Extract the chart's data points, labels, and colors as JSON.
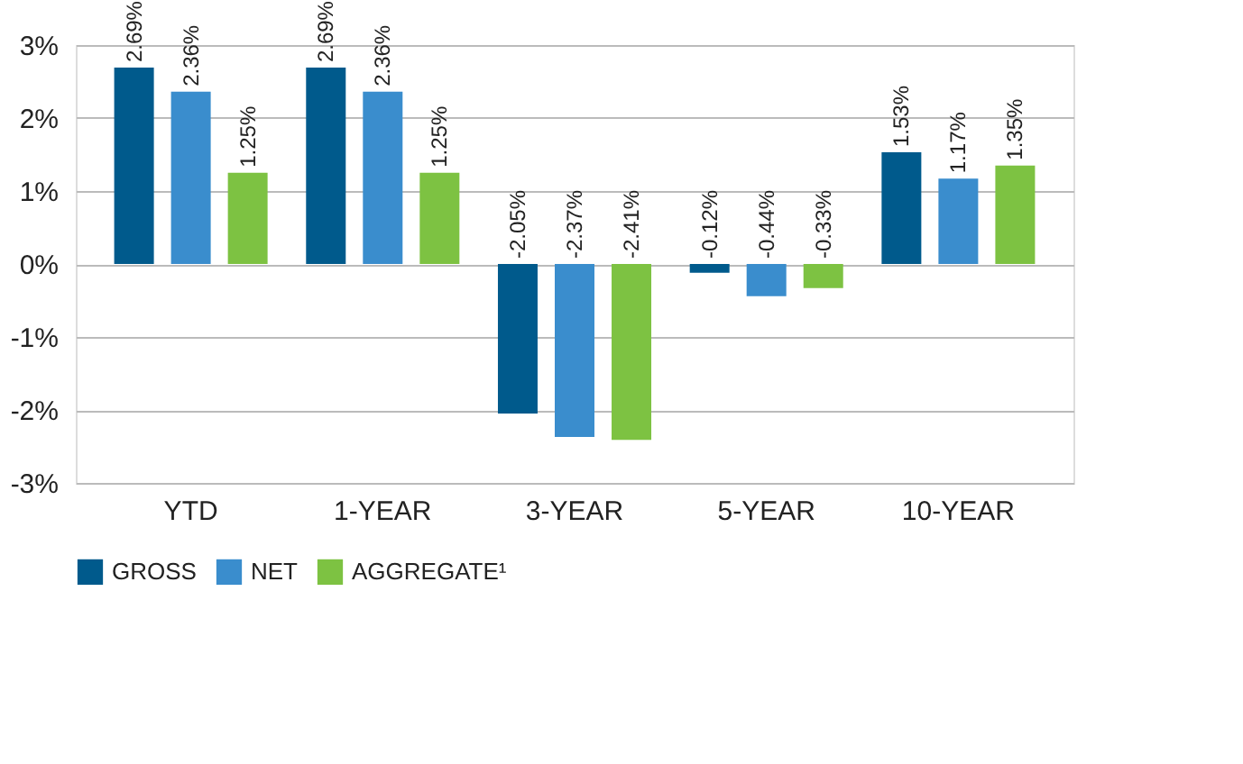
{
  "chart_data": {
    "type": "bar",
    "categories": [
      "YTD",
      "1-YEAR",
      "3-YEAR",
      "5-YEAR",
      "10-YEAR"
    ],
    "series": [
      {
        "name": "GROSS",
        "color": "#005a8c",
        "values": [
          2.69,
          2.69,
          -2.05,
          -0.12,
          1.53
        ],
        "value_labels": [
          "2.69%",
          "2.69%",
          "-2.05%",
          "-0.12%",
          "1.53%"
        ]
      },
      {
        "name": "NET",
        "color": "#3a8dcd",
        "values": [
          2.36,
          2.36,
          -2.37,
          -0.44,
          1.17
        ],
        "value_labels": [
          "2.36%",
          "2.36%",
          "-2.37%",
          "-0.44%",
          "1.17%"
        ]
      },
      {
        "name": "AGGREGATE¹",
        "color": "#7dc242",
        "values": [
          1.25,
          1.25,
          -2.41,
          -0.33,
          1.35
        ],
        "value_labels": [
          "1.25%",
          "1.25%",
          "-2.41%",
          "-0.33%",
          "1.35%"
        ]
      }
    ],
    "ylim": [
      -3,
      3
    ],
    "yticks": [
      {
        "value": -3,
        "label": "-3%"
      },
      {
        "value": -2,
        "label": "-2%"
      },
      {
        "value": -1,
        "label": "-1%"
      },
      {
        "value": 0,
        "label": "0%"
      },
      {
        "value": 1,
        "label": "1%"
      },
      {
        "value": 2,
        "label": "2%"
      },
      {
        "value": 3,
        "label": "3%"
      }
    ],
    "grid": "y",
    "legend": "bottom"
  }
}
